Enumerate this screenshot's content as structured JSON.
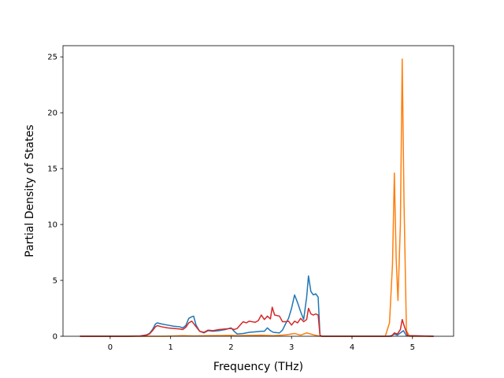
{
  "chart_data": {
    "type": "line",
    "title": "",
    "xlabel": "Frequency (THz)",
    "ylabel": "Partial Density of States",
    "xlim": [
      -0.78,
      5.68
    ],
    "ylim": [
      0,
      26
    ],
    "xticks": [
      0,
      1,
      2,
      3,
      4,
      5
    ],
    "yticks": [
      0,
      5,
      10,
      15,
      20,
      25
    ],
    "grid": false,
    "legend": "none",
    "series": [
      {
        "color": "#1f77b4",
        "points": [
          [
            -0.5,
            0
          ],
          [
            0.3,
            0
          ],
          [
            0.5,
            0.03
          ],
          [
            0.6,
            0.12
          ],
          [
            0.65,
            0.25
          ],
          [
            0.7,
            0.6
          ],
          [
            0.75,
            1.1
          ],
          [
            0.78,
            1.2
          ],
          [
            0.85,
            1.1
          ],
          [
            0.95,
            1.0
          ],
          [
            1.05,
            0.9
          ],
          [
            1.15,
            0.85
          ],
          [
            1.2,
            0.75
          ],
          [
            1.25,
            0.95
          ],
          [
            1.3,
            1.6
          ],
          [
            1.35,
            1.75
          ],
          [
            1.38,
            1.8
          ],
          [
            1.42,
            1.0
          ],
          [
            1.48,
            0.45
          ],
          [
            1.55,
            0.3
          ],
          [
            1.62,
            0.5
          ],
          [
            1.7,
            0.45
          ],
          [
            1.8,
            0.5
          ],
          [
            1.9,
            0.6
          ],
          [
            2.0,
            0.75
          ],
          [
            2.05,
            0.45
          ],
          [
            2.1,
            0.2
          ],
          [
            2.2,
            0.25
          ],
          [
            2.3,
            0.35
          ],
          [
            2.4,
            0.4
          ],
          [
            2.5,
            0.45
          ],
          [
            2.55,
            0.45
          ],
          [
            2.6,
            0.75
          ],
          [
            2.65,
            0.5
          ],
          [
            2.7,
            0.35
          ],
          [
            2.8,
            0.3
          ],
          [
            2.85,
            0.55
          ],
          [
            2.9,
            1.1
          ],
          [
            2.95,
            1.6
          ],
          [
            3.0,
            2.5
          ],
          [
            3.05,
            3.7
          ],
          [
            3.1,
            3.0
          ],
          [
            3.15,
            2.2
          ],
          [
            3.2,
            1.5
          ],
          [
            3.25,
            3.5
          ],
          [
            3.28,
            5.4
          ],
          [
            3.32,
            4.0
          ],
          [
            3.36,
            3.7
          ],
          [
            3.4,
            3.8
          ],
          [
            3.44,
            3.5
          ],
          [
            3.47,
            0.1
          ],
          [
            3.5,
            0
          ],
          [
            4.6,
            0
          ],
          [
            4.65,
            0.05
          ],
          [
            4.7,
            0.2
          ],
          [
            4.75,
            0.1
          ],
          [
            4.8,
            0.3
          ],
          [
            4.85,
            0.5
          ],
          [
            4.9,
            0.05
          ],
          [
            5.35,
            0
          ]
        ]
      },
      {
        "color": "#ff7f0e",
        "points": [
          [
            -0.5,
            0
          ],
          [
            0.9,
            0
          ],
          [
            1.0,
            0.02
          ],
          [
            1.2,
            0.05
          ],
          [
            1.4,
            0.03
          ],
          [
            1.6,
            0.05
          ],
          [
            1.8,
            0.06
          ],
          [
            2.0,
            0.08
          ],
          [
            2.1,
            0.05
          ],
          [
            2.3,
            0.08
          ],
          [
            2.5,
            0.1
          ],
          [
            2.7,
            0.05
          ],
          [
            2.9,
            0.12
          ],
          [
            3.05,
            0.25
          ],
          [
            3.15,
            0.1
          ],
          [
            3.25,
            0.3
          ],
          [
            3.35,
            0.15
          ],
          [
            3.45,
            0.02
          ],
          [
            3.5,
            0
          ],
          [
            4.55,
            0
          ],
          [
            4.62,
            1.2
          ],
          [
            4.67,
            6.5
          ],
          [
            4.7,
            14.6
          ],
          [
            4.73,
            7.0
          ],
          [
            4.76,
            3.2
          ],
          [
            4.8,
            10.0
          ],
          [
            4.83,
            24.8
          ],
          [
            4.86,
            12.0
          ],
          [
            4.9,
            0.5
          ],
          [
            4.95,
            0
          ],
          [
            5.35,
            0
          ]
        ]
      },
      {
        "color": "#d62728",
        "points": [
          [
            -0.5,
            0
          ],
          [
            0.3,
            0
          ],
          [
            0.5,
            0.03
          ],
          [
            0.6,
            0.1
          ],
          [
            0.65,
            0.2
          ],
          [
            0.7,
            0.5
          ],
          [
            0.75,
            0.85
          ],
          [
            0.78,
            0.95
          ],
          [
            0.85,
            0.85
          ],
          [
            0.95,
            0.75
          ],
          [
            1.05,
            0.7
          ],
          [
            1.15,
            0.65
          ],
          [
            1.2,
            0.6
          ],
          [
            1.25,
            0.8
          ],
          [
            1.3,
            1.2
          ],
          [
            1.35,
            1.35
          ],
          [
            1.4,
            1.0
          ],
          [
            1.48,
            0.45
          ],
          [
            1.55,
            0.35
          ],
          [
            1.62,
            0.55
          ],
          [
            1.7,
            0.5
          ],
          [
            1.8,
            0.6
          ],
          [
            1.9,
            0.65
          ],
          [
            2.0,
            0.7
          ],
          [
            2.05,
            0.6
          ],
          [
            2.1,
            0.7
          ],
          [
            2.15,
            1.0
          ],
          [
            2.2,
            1.3
          ],
          [
            2.25,
            1.2
          ],
          [
            2.3,
            1.35
          ],
          [
            2.35,
            1.3
          ],
          [
            2.4,
            1.25
          ],
          [
            2.45,
            1.4
          ],
          [
            2.5,
            1.9
          ],
          [
            2.55,
            1.5
          ],
          [
            2.6,
            1.8
          ],
          [
            2.65,
            1.55
          ],
          [
            2.68,
            2.6
          ],
          [
            2.72,
            1.9
          ],
          [
            2.8,
            1.8
          ],
          [
            2.85,
            1.3
          ],
          [
            2.9,
            1.3
          ],
          [
            2.95,
            1.35
          ],
          [
            3.0,
            1.0
          ],
          [
            3.05,
            1.35
          ],
          [
            3.1,
            1.2
          ],
          [
            3.15,
            1.6
          ],
          [
            3.2,
            1.3
          ],
          [
            3.25,
            1.5
          ],
          [
            3.28,
            2.5
          ],
          [
            3.32,
            2.0
          ],
          [
            3.36,
            1.9
          ],
          [
            3.4,
            2.0
          ],
          [
            3.44,
            1.9
          ],
          [
            3.47,
            0.1
          ],
          [
            3.5,
            0
          ],
          [
            4.65,
            0
          ],
          [
            4.7,
            0.3
          ],
          [
            4.75,
            0.2
          ],
          [
            4.8,
            0.6
          ],
          [
            4.83,
            1.5
          ],
          [
            4.87,
            0.8
          ],
          [
            4.92,
            0.05
          ],
          [
            5.35,
            0
          ]
        ]
      }
    ]
  }
}
